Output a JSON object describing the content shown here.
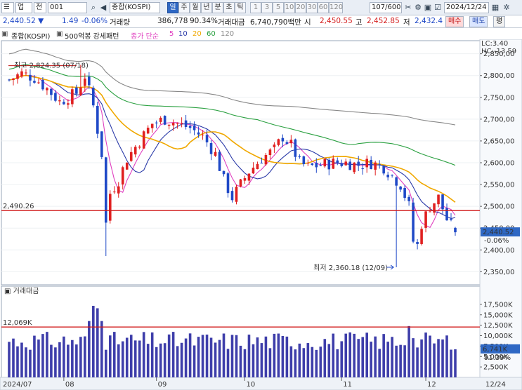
{
  "toolbar": {
    "market": "업",
    "code": "001",
    "name": "종합(KOSPI)",
    "period_tabs": [
      "일",
      "주",
      "월",
      "년",
      "분",
      "초",
      "틱"
    ],
    "active_period": "일",
    "interval_buttons": [
      "1",
      "3",
      "5",
      "10",
      "20",
      "30",
      "60",
      "120"
    ],
    "count": "107/600",
    "date": "2024/12/24",
    "label_jeon": "전"
  },
  "price_bar": {
    "current": "2,440.52",
    "current_arrow": "▼",
    "change": "1.49",
    "change_pct": "-0.06%",
    "volume_label": "거래량",
    "volume": "386,778",
    "volume_ratio": "90.34%",
    "amount_label": "거래대금",
    "amount": "6,740,790백만",
    "open_label": "시",
    "open": "2,450.55",
    "high_label": "고",
    "high": "2,452.85",
    "low_label": "저",
    "low": "2,432.4",
    "buy_button": "매수",
    "sell_button": "매도",
    "eval_button": "평"
  },
  "legend": {
    "name": "종합(KOSPI)",
    "pattern": "500억봉 강세패턴",
    "ma_prefix": "종가 단순",
    "ma_periods": [
      "5",
      "10",
      "20",
      "60",
      "120"
    ],
    "ma_colors": [
      "#e040c0",
      "#2a3aa8",
      "#f0a800",
      "#2aa040",
      "#888888"
    ]
  },
  "price_chart": {
    "lc": "LC:3.40",
    "hc": "HC:-13.59",
    "ylim": [
      2320,
      2880
    ],
    "y_ticks": [
      "2,350,00",
      "2,400,00",
      "2,450,00",
      "2,500,00",
      "2,550,00",
      "2,600,00",
      "2,650,00",
      "2,700,00",
      "2,750,00",
      "2,800,00",
      "2,850,00"
    ],
    "y_tick_values": [
      2350,
      2400,
      2450,
      2500,
      2550,
      2600,
      2650,
      2700,
      2750,
      2800,
      2850
    ],
    "hline_value": 2490.26,
    "hline_label": "2,490.26",
    "max_label": "최고 2,824.35 (07/18)",
    "min_label": "최저 2,360.18 (12/09)",
    "current_label": "2,440.52",
    "current_pct": "-0.06%",
    "current_value": 2440.52
  },
  "volume_chart": {
    "title": "거래대금",
    "ylim": [
      0,
      19500
    ],
    "y_ticks": [
      "2,500K",
      "5,000K",
      "7,500K",
      "10,000K",
      "12,500K",
      "15,000K",
      "17,500K"
    ],
    "y_tick_values": [
      2500,
      5000,
      7500,
      10000,
      12500,
      15000,
      17500
    ],
    "hline_value": 12069,
    "hline_label": "12,069K",
    "current_label": "6,741K",
    "current_pct": "91.39%",
    "current_value": 6741
  },
  "x_axis": {
    "labels": [
      "2024/07",
      "08",
      "09",
      "10",
      "11",
      "12",
      "12/24"
    ]
  },
  "colors": {
    "up": "#e02020",
    "down": "#1f49c7",
    "hline": "#d01818",
    "volume_bar": "#3e3eaa"
  }
}
